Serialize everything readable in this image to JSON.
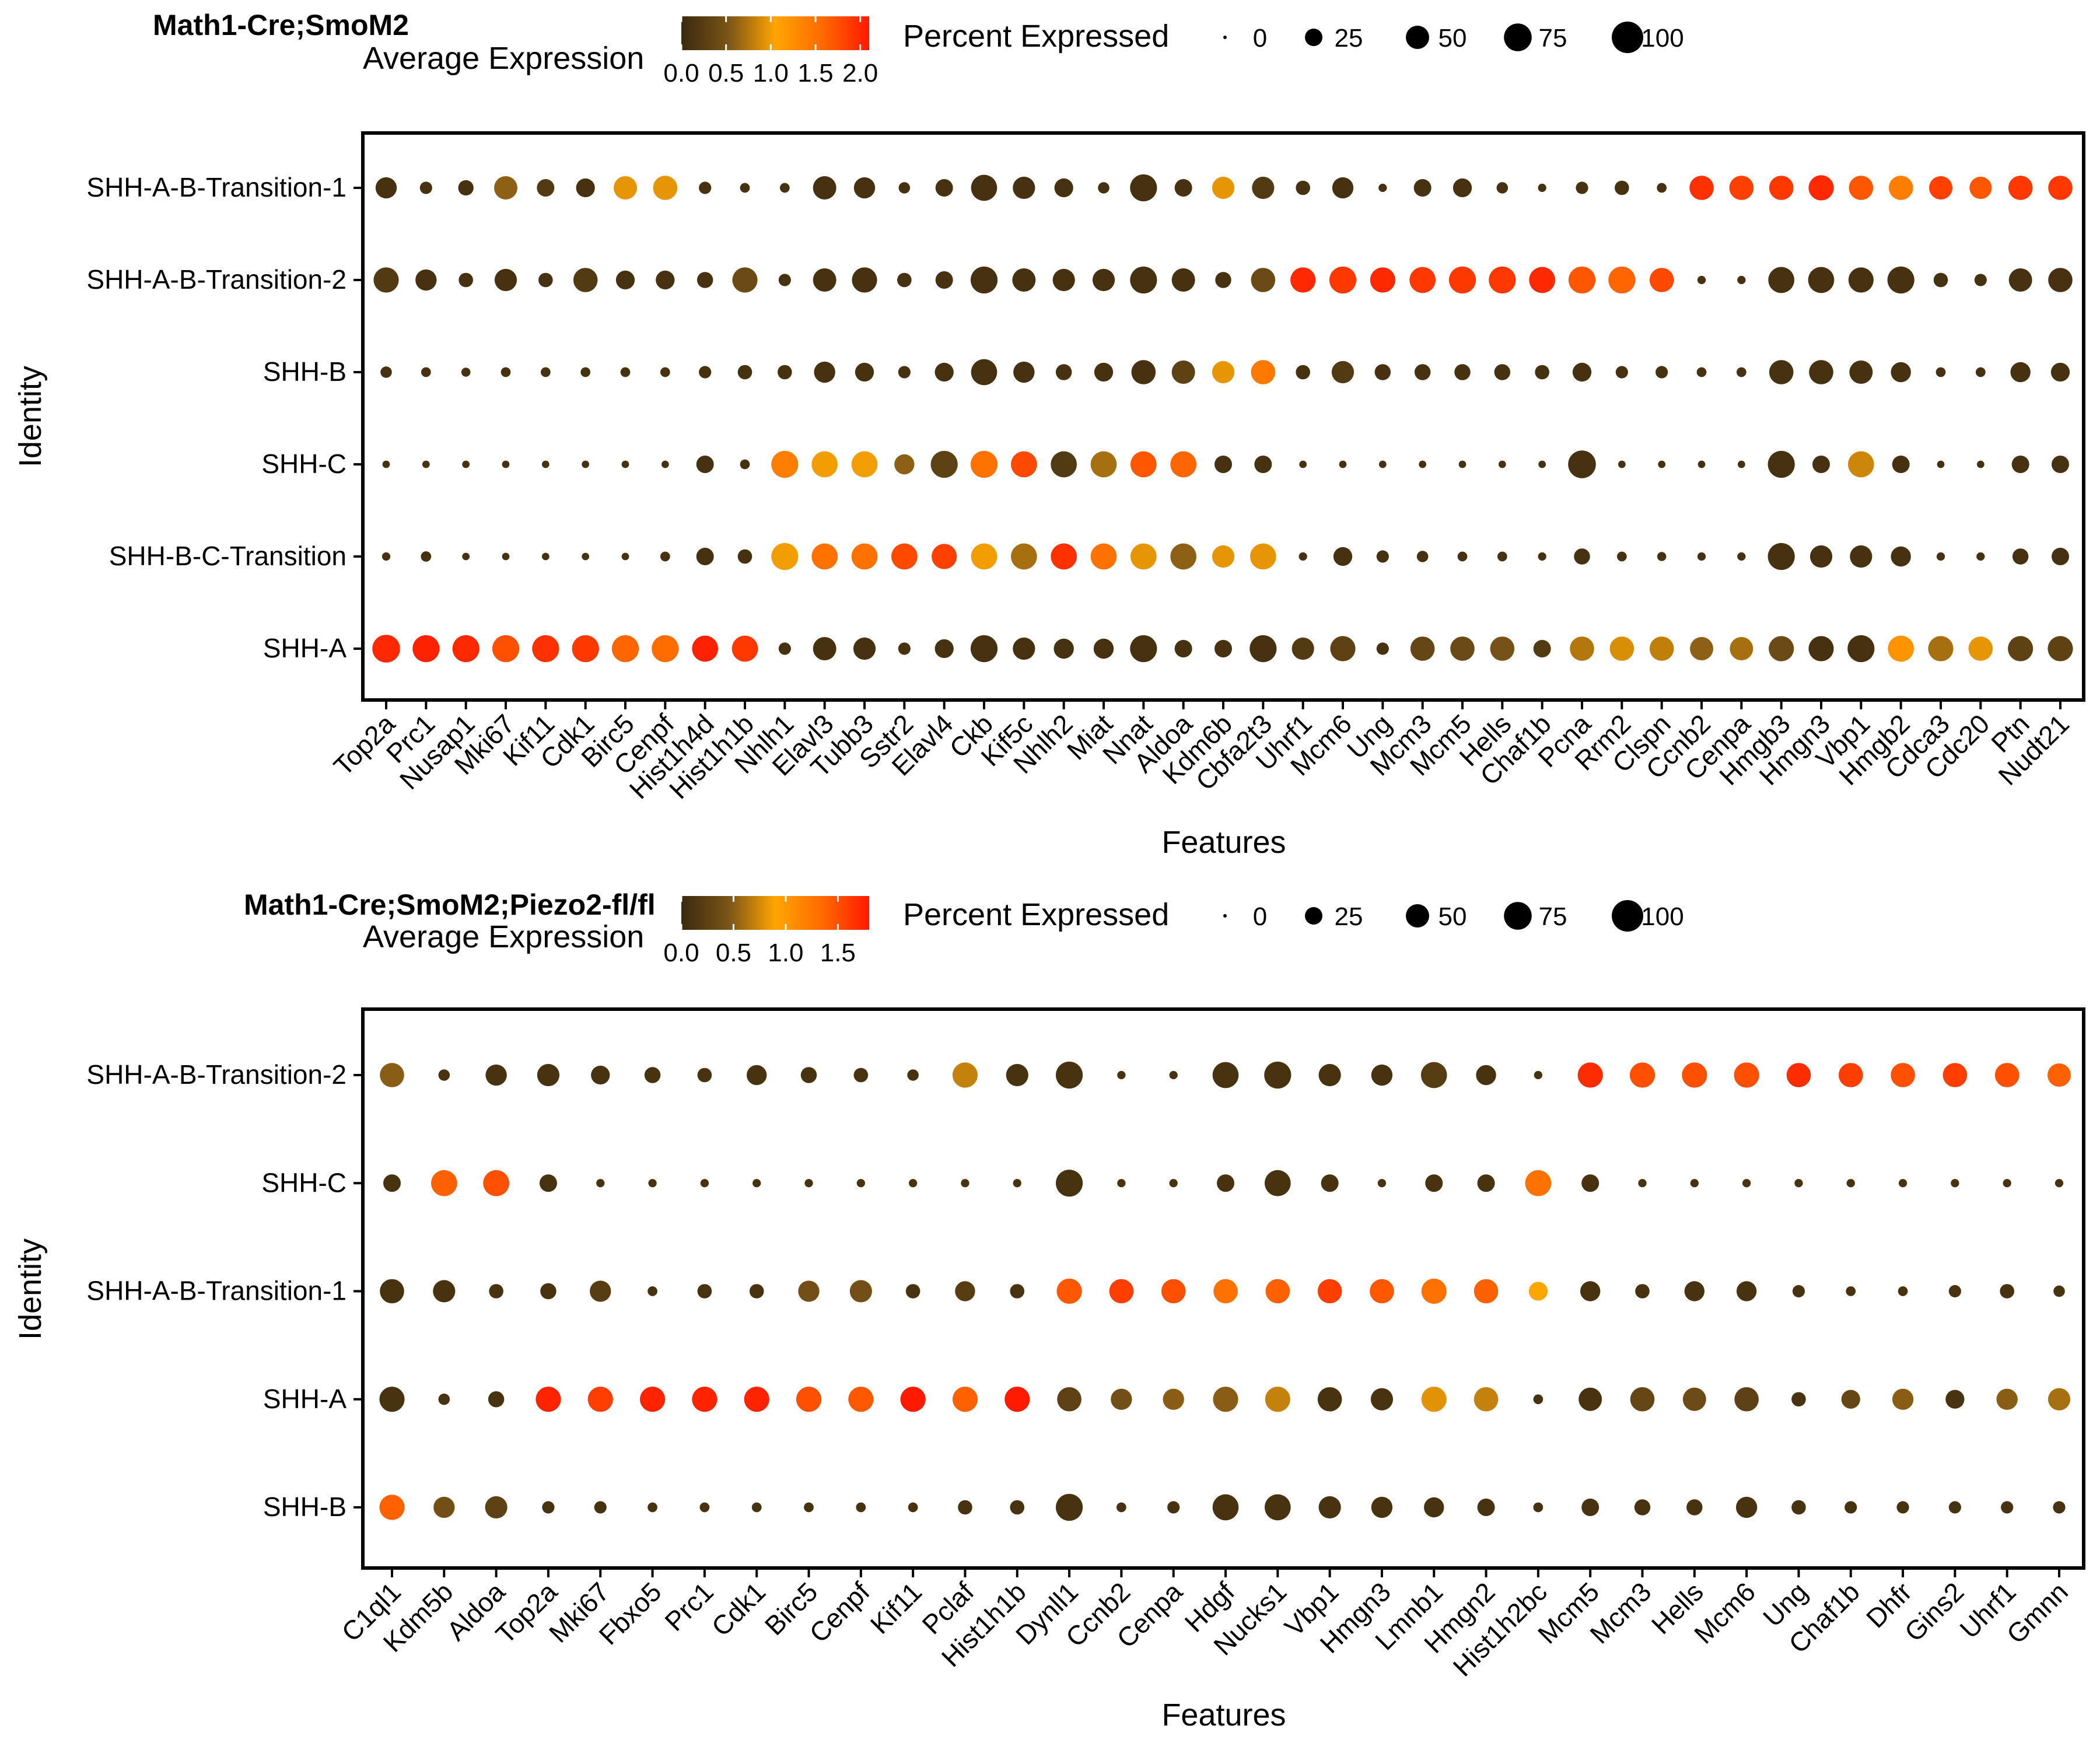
{
  "legend_labels": {
    "color_title": "Average Expression",
    "size_title": "Percent Expressed",
    "size_ticks": [
      "0",
      "25",
      "50",
      "75",
      "100"
    ]
  },
  "colors": {
    "low": "#3a2a0e",
    "mid1": "#7a5418",
    "mid2": "#ffa500",
    "mid3": "#ff6a00",
    "high": "#ff1a00"
  },
  "chart_data": [
    {
      "type": "dotplot",
      "title": "Math1-Cre;SmoM2",
      "xlabel": "Features",
      "ylabel": "Identity",
      "color_ticks": [
        "0.0",
        "0.5",
        "1.0",
        "1.5",
        "2.0"
      ],
      "color_range": [
        0,
        2.1
      ],
      "rows": [
        "SHH-A-B-Transition-1",
        "SHH-A-B-Transition-2",
        "SHH-B",
        "SHH-C",
        "SHH-B-C-Transition",
        "SHH-A"
      ],
      "features": [
        "Top2a",
        "Prc1",
        "Nusap1",
        "Mki67",
        "Kif11",
        "Cdk1",
        "Birc5",
        "Cenpf",
        "Hist1h4d",
        "Hist1h1b",
        "Nhlh1",
        "Elavl3",
        "Tubb3",
        "Sstr2",
        "Elavl4",
        "Ckb",
        "Kif5c",
        "Nhlh2",
        "Miat",
        "Nnat",
        "Aldoa",
        "Kdm6b",
        "Cbfa2t3",
        "Uhrf1",
        "Mcm6",
        "Ung",
        "Mcm3",
        "Mcm5",
        "Hells",
        "Chaf1b",
        "Pcna",
        "Rrm2",
        "Clspn",
        "Ccnb2",
        "Cenpa",
        "Hmgb3",
        "Hmgn3",
        "Vbp1",
        "Hmgb2",
        "Cdca3",
        "Cdc20",
        "Ptn",
        "Nudt21"
      ],
      "pct": [
        [
          40,
          10,
          18,
          50,
          25,
          30,
          50,
          55,
          10,
          5,
          5,
          50,
          40,
          8,
          25,
          65,
          45,
          30,
          8,
          70,
          25,
          45,
          45,
          15,
          40,
          3,
          25,
          30,
          8,
          3,
          10,
          15,
          5,
          55,
          55,
          55,
          60,
          55,
          55,
          50,
          45,
          55,
          55
        ],
        [
          60,
          40,
          15,
          45,
          15,
          55,
          30,
          30,
          20,
          60,
          10,
          50,
          60,
          15,
          25,
          70,
          50,
          45,
          45,
          70,
          50,
          20,
          55,
          60,
          70,
          60,
          65,
          70,
          70,
          65,
          70,
          70,
          55,
          3,
          3,
          65,
          65,
          60,
          70,
          15,
          10,
          50,
          55
        ],
        [
          8,
          5,
          4,
          5,
          5,
          5,
          5,
          5,
          10,
          15,
          15,
          40,
          30,
          10,
          30,
          65,
          40,
          20,
          30,
          55,
          50,
          45,
          55,
          15,
          45,
          20,
          20,
          20,
          20,
          15,
          30,
          10,
          10,
          5,
          5,
          55,
          55,
          50,
          35,
          5,
          5,
          35,
          30
        ],
        [
          2,
          2,
          2,
          2,
          2,
          2,
          2,
          2,
          25,
          5,
          70,
          65,
          65,
          35,
          70,
          70,
          65,
          65,
          65,
          65,
          65,
          25,
          25,
          2,
          2,
          2,
          2,
          2,
          2,
          2,
          75,
          2,
          2,
          2,
          2,
          70,
          25,
          65,
          25,
          2,
          2,
          25,
          25
        ],
        [
          3,
          6,
          2,
          2,
          2,
          2,
          2,
          5,
          25,
          15,
          70,
          65,
          65,
          65,
          60,
          65,
          65,
          65,
          65,
          65,
          65,
          45,
          65,
          3,
          30,
          10,
          8,
          5,
          5,
          3,
          20,
          5,
          4,
          3,
          3,
          70,
          45,
          45,
          35,
          3,
          3,
          20,
          25
        ],
        [
          75,
          70,
          70,
          70,
          70,
          70,
          70,
          70,
          65,
          65,
          10,
          50,
          45,
          10,
          30,
          70,
          45,
          35,
          35,
          70,
          25,
          25,
          70,
          45,
          60,
          10,
          55,
          55,
          55,
          25,
          55,
          55,
          55,
          50,
          50,
          60,
          60,
          70,
          65,
          60,
          55,
          60,
          60
        ]
      ],
      "expr": [
        [
          0.1,
          0.1,
          0.1,
          0.6,
          0.2,
          0.1,
          0.95,
          0.95,
          0.1,
          0.1,
          0.1,
          0.1,
          0.1,
          0.1,
          0.1,
          0.1,
          0.1,
          0.1,
          0.1,
          0.1,
          0.1,
          0.95,
          0.2,
          0.1,
          0.1,
          0.1,
          0.1,
          0.1,
          0.1,
          0.1,
          0.1,
          0.1,
          0.1,
          1.95,
          1.85,
          1.9,
          2.0,
          1.7,
          1.4,
          1.85,
          1.7,
          1.9,
          1.9
        ],
        [
          0.2,
          0.1,
          0.1,
          0.1,
          0.1,
          0.2,
          0.1,
          0.1,
          0.1,
          0.4,
          0.1,
          0.1,
          0.1,
          0.1,
          0.1,
          0.1,
          0.1,
          0.1,
          0.1,
          0.1,
          0.1,
          0.1,
          0.4,
          2.0,
          1.9,
          2.0,
          1.9,
          1.9,
          1.9,
          2.0,
          1.7,
          1.6,
          1.8,
          0.1,
          0.1,
          0.1,
          0.1,
          0.1,
          0.1,
          0.1,
          0.1,
          0.1,
          0.1
        ],
        [
          0.1,
          0.1,
          0.1,
          0.1,
          0.1,
          0.1,
          0.1,
          0.1,
          0.1,
          0.1,
          0.1,
          0.1,
          0.1,
          0.1,
          0.1,
          0.1,
          0.1,
          0.1,
          0.1,
          0.1,
          0.3,
          0.95,
          1.45,
          0.1,
          0.2,
          0.1,
          0.1,
          0.1,
          0.1,
          0.1,
          0.1,
          0.1,
          0.1,
          0.1,
          0.1,
          0.1,
          0.1,
          0.1,
          0.1,
          0.1,
          0.1,
          0.1,
          0.1
        ],
        [
          0.1,
          0.1,
          0.1,
          0.1,
          0.1,
          0.1,
          0.1,
          0.1,
          0.1,
          0.1,
          1.4,
          1.0,
          1.0,
          0.6,
          0.3,
          1.5,
          1.8,
          0.2,
          0.7,
          1.7,
          1.6,
          0.1,
          0.1,
          0.1,
          0.1,
          0.1,
          0.1,
          0.1,
          0.1,
          0.1,
          0.1,
          0.1,
          0.1,
          0.1,
          0.1,
          0.1,
          0.1,
          0.85,
          0.1,
          0.1,
          0.1,
          0.1,
          0.1
        ],
        [
          0.1,
          0.1,
          0.1,
          0.1,
          0.1,
          0.1,
          0.1,
          0.1,
          0.1,
          0.1,
          1.0,
          1.5,
          1.5,
          1.8,
          1.85,
          1.0,
          0.7,
          1.95,
          1.5,
          0.95,
          0.6,
          0.95,
          0.95,
          0.1,
          0.1,
          0.1,
          0.1,
          0.1,
          0.1,
          0.1,
          0.1,
          0.1,
          0.1,
          0.1,
          0.1,
          0.1,
          0.1,
          0.1,
          0.1,
          0.1,
          0.1,
          0.1,
          0.1
        ],
        [
          2.0,
          2.05,
          2.0,
          1.75,
          1.95,
          1.9,
          1.6,
          1.55,
          2.05,
          1.9,
          0.1,
          0.1,
          0.1,
          0.1,
          0.1,
          0.1,
          0.1,
          0.1,
          0.1,
          0.1,
          0.1,
          0.1,
          0.1,
          0.2,
          0.3,
          0.1,
          0.35,
          0.4,
          0.5,
          0.2,
          0.75,
          0.9,
          0.8,
          0.6,
          0.7,
          0.4,
          0.1,
          0.1,
          1.2,
          0.7,
          0.95,
          0.3,
          0.3
        ]
      ]
    },
    {
      "type": "dotplot",
      "title": "Math1-Cre;SmoM2;Piezo2-fl/fl",
      "xlabel": "Features",
      "ylabel": "Identity",
      "color_ticks": [
        "0.0",
        "0.5",
        "1.0",
        "1.5"
      ],
      "color_range": [
        0,
        1.8
      ],
      "rows": [
        "SHH-A-B-Transition-2",
        "SHH-C",
        "SHH-A-B-Transition-1",
        "SHH-A",
        "SHH-B"
      ],
      "features": [
        "C1ql1",
        "Kdm5b",
        "Aldoa",
        "Top2a",
        "Mki67",
        "Fbxo5",
        "Prc1",
        "Cdk1",
        "Birc5",
        "Cenpf",
        "Kif11",
        "Pclaf",
        "Hist1h1b",
        "Dynll1",
        "Ccnb2",
        "Cenpa",
        "Hdgf",
        "Nucks1",
        "Vbp1",
        "Hmgn3",
        "Lmnb1",
        "Hmgn2",
        "Hist1h2bc",
        "Mcm5",
        "Mcm3",
        "Hells",
        "Mcm6",
        "Ung",
        "Chaf1b",
        "Dhfr",
        "Gins2",
        "Uhrf1",
        "Gmnn"
      ],
      "pct": [
        [
          55,
          8,
          40,
          45,
          30,
          20,
          15,
          35,
          20,
          15,
          8,
          60,
          45,
          70,
          3,
          3,
          65,
          70,
          45,
          40,
          65,
          35,
          3,
          60,
          60,
          60,
          60,
          55,
          55,
          55,
          55,
          55,
          50
        ],
        [
          25,
          65,
          65,
          25,
          3,
          3,
          3,
          3,
          3,
          3,
          3,
          3,
          3,
          70,
          3,
          3,
          25,
          65,
          25,
          3,
          25,
          25,
          65,
          25,
          3,
          3,
          3,
          3,
          3,
          3,
          3,
          3,
          3
        ],
        [
          55,
          45,
          15,
          20,
          40,
          5,
          15,
          15,
          40,
          45,
          15,
          35,
          15,
          60,
          55,
          55,
          55,
          55,
          55,
          55,
          60,
          55,
          30,
          35,
          15,
          35,
          35,
          10,
          5,
          5,
          10,
          15,
          8
        ],
        [
          60,
          8,
          20,
          60,
          60,
          60,
          60,
          60,
          60,
          60,
          60,
          60,
          60,
          55,
          40,
          40,
          60,
          60,
          55,
          45,
          60,
          55,
          5,
          50,
          55,
          50,
          55,
          15,
          30,
          40,
          30,
          40,
          45
        ],
        [
          60,
          40,
          45,
          10,
          10,
          5,
          5,
          5,
          5,
          5,
          5,
          15,
          15,
          70,
          5,
          10,
          65,
          65,
          45,
          40,
          35,
          25,
          5,
          25,
          20,
          20,
          40,
          15,
          10,
          10,
          10,
          10,
          10
        ]
      ],
      "expr": [
        [
          0.5,
          0.1,
          0.1,
          0.1,
          0.1,
          0.1,
          0.1,
          0.1,
          0.1,
          0.1,
          0.1,
          0.7,
          0.1,
          0.1,
          0.1,
          0.1,
          0.1,
          0.1,
          0.1,
          0.1,
          0.2,
          0.1,
          0.1,
          1.7,
          1.5,
          1.5,
          1.5,
          1.7,
          1.6,
          1.5,
          1.6,
          1.5,
          1.4
        ],
        [
          0.1,
          1.4,
          1.5,
          0.1,
          0.1,
          0.1,
          0.1,
          0.1,
          0.1,
          0.1,
          0.1,
          0.1,
          0.1,
          0.1,
          0.1,
          0.1,
          0.1,
          0.1,
          0.1,
          0.1,
          0.1,
          0.1,
          1.3,
          0.1,
          0.1,
          0.1,
          0.1,
          0.1,
          0.1,
          0.1,
          0.1,
          0.1,
          0.1
        ],
        [
          0.1,
          0.1,
          0.1,
          0.1,
          0.2,
          0.1,
          0.1,
          0.1,
          0.4,
          0.4,
          0.1,
          0.2,
          0.1,
          1.45,
          1.6,
          1.5,
          1.3,
          1.4,
          1.6,
          1.45,
          1.3,
          1.4,
          0.9,
          0.1,
          0.1,
          0.1,
          0.1,
          0.1,
          0.1,
          0.1,
          0.1,
          0.1,
          0.1
        ],
        [
          0.1,
          0.1,
          0.1,
          1.75,
          1.6,
          1.75,
          1.75,
          1.75,
          1.5,
          1.45,
          1.8,
          1.4,
          1.8,
          0.25,
          0.4,
          0.5,
          0.5,
          0.7,
          0.1,
          0.1,
          0.8,
          0.7,
          0.1,
          0.1,
          0.3,
          0.35,
          0.25,
          0.1,
          0.3,
          0.5,
          0.1,
          0.5,
          0.6
        ],
        [
          1.4,
          0.4,
          0.25,
          0.1,
          0.1,
          0.1,
          0.1,
          0.1,
          0.1,
          0.1,
          0.1,
          0.1,
          0.1,
          0.1,
          0.1,
          0.1,
          0.1,
          0.1,
          0.1,
          0.1,
          0.1,
          0.1,
          0.1,
          0.1,
          0.1,
          0.1,
          0.1,
          0.1,
          0.1,
          0.1,
          0.1,
          0.1,
          0.1
        ]
      ]
    }
  ]
}
